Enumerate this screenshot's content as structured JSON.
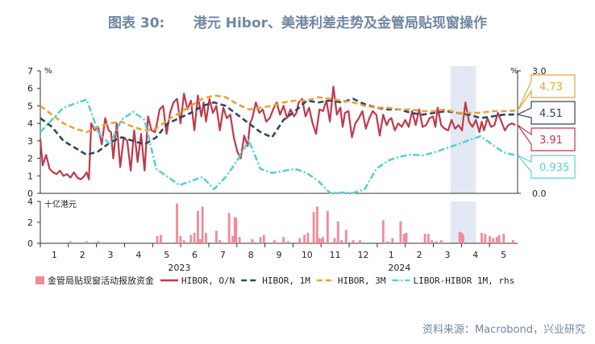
{
  "title": "图表 30:      港元 Hibor、美港利差走势及金管局贴现窗操作",
  "source": "资料来源：Macrobond，兴业研究",
  "chart_data": {
    "type": "line",
    "top_panel": {
      "left_axis": {
        "unit": "%",
        "min": 0,
        "max": 7,
        "ticks": [
          "0",
          "1",
          "2",
          "3",
          "4",
          "5",
          "6",
          "7"
        ]
      },
      "right_axis": {
        "unit": "%",
        "min": 0.0,
        "max": 3.0,
        "ticks": [
          "0.0",
          "3.0"
        ]
      },
      "series": [
        {
          "name": "HIBOR, O/N",
          "color": "#c0394b",
          "style": "solid",
          "axis": "left",
          "x": [
            0,
            0.1,
            0.25,
            0.4,
            0.55,
            0.7,
            0.85,
            1,
            1.15,
            1.3,
            1.45,
            1.6,
            1.75,
            1.9,
            2,
            2.1,
            2.2,
            2.35,
            2.5,
            2.65,
            2.8,
            2.95,
            3.05,
            3.15,
            3.3,
            3.45,
            3.6,
            3.75,
            3.9,
            4.05,
            4.2,
            4.35,
            4.5,
            4.65,
            4.8,
            4.95,
            5.05,
            5.15,
            5.3,
            5.45,
            5.6,
            5.75,
            5.9,
            6.05,
            6.2,
            6.35,
            6.5,
            6.65,
            6.8,
            6.95,
            7.05,
            7.15,
            7.3,
            7.45,
            7.6,
            7.75,
            7.9,
            8.05,
            8.2,
            8.35,
            8.5,
            8.65,
            8.8,
            8.95,
            9.05,
            9.15,
            9.3,
            9.45,
            9.6,
            9.75,
            9.9,
            10.05,
            10.2,
            10.35,
            10.5,
            10.65,
            10.8,
            10.95,
            11.05,
            11.15,
            11.3,
            11.45,
            11.6,
            11.75,
            11.9,
            12.05,
            12.2,
            12.35,
            12.5,
            12.65,
            12.8,
            12.95,
            13.05,
            13.15,
            13.3,
            13.45,
            13.6,
            13.75,
            13.9,
            14.05,
            14.2,
            14.35,
            14.5,
            14.65,
            14.8,
            14.95,
            15.05,
            15.15,
            15.3,
            15.45,
            15.6,
            15.75,
            15.9,
            16.05,
            16.2,
            16.35,
            16.5,
            16.65,
            16.8,
            16.95,
            17.05,
            17.15,
            17.3,
            17.45,
            17.6,
            17.75,
            17.9,
            18.05,
            18.2,
            18.35,
            18.5,
            18.65,
            18.8,
            18.95,
            19.05,
            19.15,
            19.3,
            19.45,
            19.6,
            19.75,
            19.9,
            20.05,
            20.2,
            20.35,
            20.5
          ],
          "y": [
            3.1,
            1.6,
            2.2,
            1.4,
            1.2,
            1.1,
            1.3,
            1.0,
            1.1,
            0.9,
            1.2,
            0.9,
            0.8,
            1.0,
            1.2,
            0.8,
            4.0,
            3.6,
            3.8,
            2.8,
            4.3,
            3.6,
            3.5,
            2.0,
            4.0,
            1.5,
            3.2,
            3.0,
            1.3,
            3.6,
            1.8,
            3.4,
            1.3,
            4.4,
            3.6,
            3.5,
            4.1,
            4.8,
            5.0,
            3.4,
            4.6,
            5.2,
            5.4,
            4.0,
            5.7,
            4.8,
            5.3,
            3.6,
            5.6,
            4.4,
            5.2,
            4.1,
            5.4,
            4.6,
            5.0,
            3.6,
            4.9,
            4.3,
            4.5,
            3.2,
            2.4,
            2.0,
            3.3,
            2.7,
            4.0,
            4.3,
            5.2,
            4.6,
            4.8,
            4.1,
            4.3,
            4.8,
            5.2,
            4.5,
            5.0,
            4.3,
            4.8,
            4.4,
            4.6,
            5.2,
            5.4,
            4.4,
            4.9,
            4.0,
            3.4,
            4.8,
            4.7,
            5.3,
            4.1,
            6.1,
            4.5,
            4.9,
            3.8,
            4.6,
            4.7,
            3.2,
            4.0,
            4.3,
            4.7,
            3.7,
            4.3,
            4.7,
            4.5,
            3.3,
            4.5,
            3.9,
            4.2,
            4.3,
            3.6,
            4.0,
            3.8,
            4.2,
            3.8,
            4.7,
            3.9,
            4.8,
            3.8,
            3.9,
            4.3,
            4.4,
            3.8,
            4.9,
            3.9,
            3.7,
            3.6,
            4.2,
            3.7,
            3.9,
            3.6,
            5.2,
            4.1,
            3.8,
            4.2,
            3.5,
            4.1,
            3.6,
            4.3,
            3.8,
            3.9,
            4.6,
            4.1,
            3.6,
            3.9,
            4.0,
            3.91
          ]
        },
        {
          "name": "HIBOR, 1M",
          "color": "#2f4662",
          "style": "dash",
          "axis": "left",
          "x": [
            0,
            0.5,
            1,
            1.5,
            2,
            2.5,
            3,
            3.5,
            4,
            4.5,
            5,
            5.5,
            6,
            6.5,
            7,
            7.5,
            8,
            8.5,
            9,
            9.5,
            10,
            10.5,
            11,
            11.5,
            12,
            12.5,
            13,
            13.5,
            14,
            14.5,
            15,
            15.5,
            16,
            16.5,
            17,
            17.5,
            18,
            18.5,
            19,
            19.5,
            20,
            20.5
          ],
          "y": [
            4.3,
            3.8,
            3.0,
            2.6,
            2.2,
            2.4,
            2.9,
            3.2,
            3.0,
            2.8,
            3.2,
            4.0,
            4.3,
            4.6,
            5.0,
            5.2,
            5.0,
            4.5,
            4.0,
            3.5,
            3.2,
            4.2,
            4.7,
            5.3,
            5.2,
            5.3,
            5.2,
            5.4,
            5.1,
            4.9,
            4.8,
            4.8,
            4.6,
            4.5,
            4.6,
            4.7,
            4.6,
            4.5,
            4.3,
            4.4,
            4.5,
            4.51
          ]
        },
        {
          "name": "HIBOR, 3M",
          "color": "#e8a33b",
          "style": "dash",
          "axis": "left",
          "x": [
            0,
            0.5,
            1,
            1.5,
            2,
            2.5,
            3,
            3.5,
            4,
            4.5,
            5,
            5.5,
            6,
            6.5,
            7,
            7.5,
            8,
            8.5,
            9,
            9.5,
            10,
            10.5,
            11,
            11.5,
            12,
            12.5,
            13,
            13.5,
            14,
            14.5,
            15,
            15.5,
            16,
            16.5,
            17,
            17.5,
            18,
            18.5,
            19,
            19.5,
            20,
            20.5
          ],
          "y": [
            5.0,
            4.5,
            4.0,
            3.7,
            3.5,
            3.8,
            4.0,
            4.1,
            3.8,
            3.6,
            3.7,
            4.2,
            4.6,
            5.0,
            5.4,
            5.6,
            5.5,
            5.1,
            4.8,
            4.9,
            5.0,
            5.2,
            5.3,
            5.3,
            5.5,
            5.4,
            5.3,
            5.2,
            5.0,
            4.9,
            4.9,
            4.8,
            4.8,
            4.7,
            4.7,
            4.8,
            4.6,
            4.6,
            4.6,
            4.7,
            4.7,
            4.73
          ]
        },
        {
          "name": "LIBOR-HIBOR 1M, rhs",
          "color": "#5ad0d0",
          "style": "dashdot",
          "axis": "right",
          "x": [
            0,
            0.5,
            1,
            1.5,
            2,
            2.5,
            3,
            3.5,
            4,
            4.5,
            5,
            5.5,
            6,
            6.5,
            7,
            7.5,
            8,
            8.5,
            9,
            9.5,
            10,
            10.5,
            11,
            11.5,
            12,
            12.5,
            13,
            13.5,
            14,
            14.5,
            15,
            15.5,
            16,
            16.5,
            17,
            17.5,
            18,
            18.5,
            19,
            19.5,
            20,
            20.5
          ],
          "y": [
            1.5,
            1.8,
            2.1,
            2.2,
            2.3,
            1.5,
            1.2,
            1.8,
            2.0,
            1.8,
            0.6,
            0.4,
            0.2,
            0.3,
            0.4,
            0.1,
            0.4,
            0.8,
            1.3,
            0.6,
            0.5,
            0.55,
            0.6,
            0.5,
            0.3,
            0.01,
            0.02,
            0.01,
            0.1,
            0.6,
            0.8,
            0.9,
            0.95,
            0.93,
            1.0,
            1.1,
            1.2,
            1.3,
            1.4,
            1.2,
            1.0,
            0.935
          ]
        }
      ],
      "end_labels": [
        {
          "value": "4.73",
          "color": "#e8a33b"
        },
        {
          "value": "4.51",
          "color": "#2f4662"
        },
        {
          "value": "3.91",
          "color": "#c0394b"
        },
        {
          "value": "0.935",
          "color": "#5ad0d0"
        }
      ]
    },
    "bottom_panel": {
      "type": "bar",
      "unit": "十亿港元",
      "ylim": [
        0,
        4
      ],
      "ticks": [
        "0",
        "2",
        "4"
      ],
      "series_name": "金管局贴现窗活动报放资金",
      "color": "#f08a9a",
      "x": [
        1.3,
        2.0,
        2.5,
        5.05,
        5.2,
        5.9,
        6.05,
        6.2,
        6.5,
        6.65,
        6.8,
        6.9,
        7.0,
        7.15,
        7.6,
        7.75,
        8.15,
        8.3,
        8.4,
        8.45,
        8.6,
        9.15,
        9.5,
        9.65,
        10.1,
        10.5,
        10.7,
        11.2,
        11.4,
        11.55,
        11.8,
        11.95,
        12.05,
        12.15,
        12.2,
        12.4,
        12.7,
        12.85,
        13.0,
        13.2,
        13.5,
        13.8,
        14.8,
        15.0,
        15.2,
        15.55,
        15.7,
        15.8,
        16.6,
        16.75,
        16.9,
        17.1,
        17.3,
        18.1,
        18.2,
        18.25,
        19.05,
        19.2,
        19.4,
        19.55,
        19.7,
        19.8,
        20.0,
        20.4
      ],
      "values": [
        0.2,
        0.2,
        0.2,
        0.7,
        0.8,
        3.8,
        0.7,
        0.3,
        0.8,
        1.0,
        3.1,
        0.4,
        3.5,
        1.0,
        1.2,
        0.3,
        2.9,
        0.7,
        2.5,
        2.4,
        0.6,
        0.4,
        0.6,
        0.8,
        0.3,
        0.6,
        0.2,
        0.5,
        0.8,
        1.0,
        3.0,
        3.5,
        0.5,
        0.4,
        0.6,
        3.1,
        0.5,
        2.1,
        0.3,
        1.3,
        0.3,
        0.3,
        2.2,
        0.2,
        0.5,
        2.1,
        0.9,
        1.0,
        0.9,
        0.9,
        0.3,
        0.2,
        0.3,
        1.1,
        1.0,
        0.8,
        1.0,
        0.9,
        0.7,
        0.5,
        0.6,
        0.8,
        0.9,
        0.3
      ]
    },
    "x_axis": {
      "month_ticks": [
        "1",
        "2",
        "3",
        "4",
        "5",
        "6",
        "7",
        "8",
        "9",
        "10",
        "11",
        "12",
        "1",
        "2",
        "3",
        "4",
        "5"
      ],
      "years": [
        {
          "label": "2023",
          "at": 6
        },
        {
          "label": "2024",
          "at": 15.5
        }
      ],
      "xlim": [
        0,
        20.6
      ]
    },
    "highlight_region": {
      "from": 17.7,
      "to": 18.8,
      "color": "#e3e9f4"
    },
    "legend": {
      "placement": "bottom",
      "items": [
        {
          "label": "金管局贴现窗活动报放资金",
          "color": "#f08a9a",
          "kind": "bar"
        },
        {
          "label": "HIBOR, O/N",
          "color": "#c0394b",
          "kind": "solid"
        },
        {
          "label": "HIBOR, 1M",
          "color": "#2f4662",
          "kind": "dash"
        },
        {
          "label": "HIBOR, 3M",
          "color": "#e8a33b",
          "kind": "dash"
        },
        {
          "label": "LIBOR-HIBOR 1M, rhs",
          "color": "#5ad0d0",
          "kind": "dashdot"
        }
      ]
    }
  }
}
